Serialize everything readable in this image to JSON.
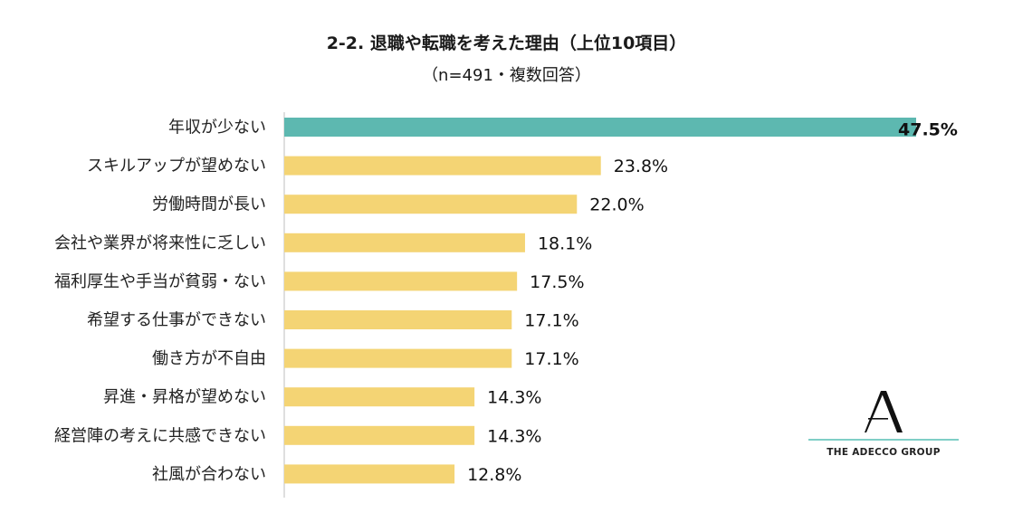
{
  "header": {
    "title": "2-2. 退職や転職を考えた理由（上位10項目）",
    "subtitle": "（n=491・複数回答）"
  },
  "logo": {
    "text": "THE ADECCO GROUP"
  },
  "colors": {
    "highlight": "#5db8b0",
    "bar": "#f4d474",
    "axis": "#bfbfbf"
  },
  "chart_data": {
    "type": "bar",
    "orientation": "horizontal",
    "title": "2-2. 退職や転職を考えた理由（上位10項目）",
    "subtitle": "（n=491・複数回答）",
    "categories": [
      "年収が少ない",
      "スキルアップが望めない",
      "労働時間が長い",
      "会社や業界が将来性に乏しい",
      "福利厚生や手当が貧弱・ない",
      "希望する仕事ができない",
      "働き方が不自由",
      "昇進・昇格が望めない",
      "経営陣の考えに共感できない",
      "社風が合わない"
    ],
    "values": [
      47.5,
      23.8,
      22.0,
      18.1,
      17.5,
      17.1,
      17.1,
      14.3,
      14.3,
      12.8
    ],
    "data_labels": [
      "47.5%",
      "23.8%",
      "22.0%",
      "18.1%",
      "17.5%",
      "17.1%",
      "17.1%",
      "14.3%",
      "14.3%",
      "12.8%"
    ],
    "highlight_index": 0,
    "xlim": [
      0,
      47.5
    ],
    "grid": false,
    "legend": "none"
  }
}
